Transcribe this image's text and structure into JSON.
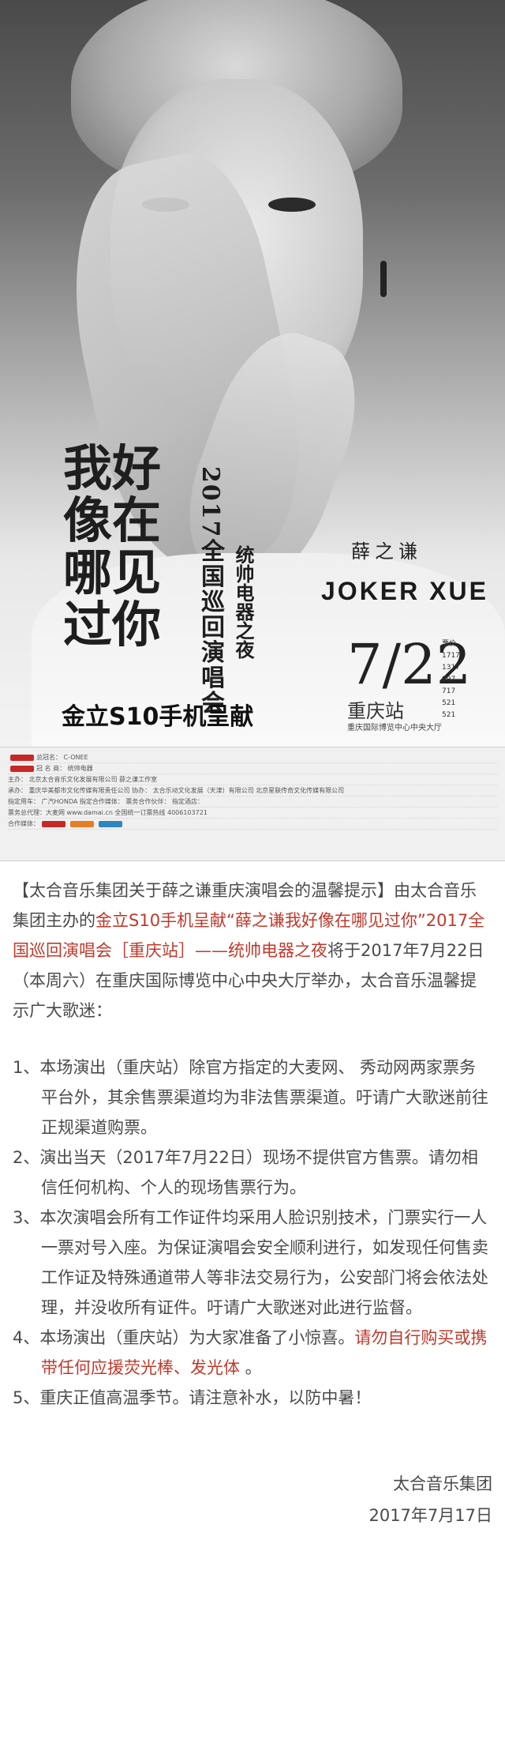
{
  "poster": {
    "tour_title_chars": [
      "我好",
      "像在",
      "哪见",
      "过你"
    ],
    "tour_subtitle": "2017全国巡回演唱会",
    "sponsor_night": "统帅电器之夜",
    "artist_cn": "薛之谦",
    "artist_en": "JOKER XUE",
    "date": "7/22",
    "city": "重庆站",
    "venue": "重庆国际博览中心中央大厅",
    "price_label": "票价",
    "prices": [
      "1717",
      "1317",
      "997",
      "717",
      "521",
      "521"
    ],
    "presenter": "金立S10手机呈献"
  },
  "credits": {
    "rows": [
      "总冠名： C-ONEE",
      "冠 名 商：   统帅电器",
      "主办：  北京太合音乐文化发展有限公司    薛之谦工作室",
      "承办：  重庆华美都市文化传媒有限责任公司    协办：  太合乐动文化发展（天津）有限公司    北京星联传奇文化传媒有限公司",
      "指定用车： 广汽HONDA    指定合作媒体：    票务合作伙伴：    指定酒店：",
      "票务总代理：大麦网    www.damai.cn    全国统一订票热线    4006103721",
      "合作媒体："
    ]
  },
  "article": {
    "intro_parts": [
      "【太合音乐集团关于薛之谦重庆演唱会的温馨提示】由太合音乐集团主办的",
      "金立S10手机呈献“薛之谦我好像在哪见过你”2017全国巡回演唱会［重庆站］——统帅电器之夜",
      "将于2017年7月22日（本周六）在重庆国际博览中心中央大厅举办，太合音乐温馨提示广大歌迷："
    ],
    "items": [
      "1、本场演出（重庆站）除官方指定的大麦网、 秀动网两家票务平台外，其余售票渠道均为非法售票渠道。吁请广大歌迷前往正规渠道购票。",
      "2、演出当天（2017年7月22日）现场不提供官方售票。请勿相信任何机构、个人的现场售票行为。",
      "3、本次演唱会所有工作证件均采用人脸识别技术，门票实行一人一票对号入座。为保证演唱会安全顺利进行，如发现任何售卖工作证及特殊通道带人等非法交易行为，公安部门将会依法处理，并没收所有证件。吁请广大歌迷对此进行监督。"
    ],
    "item4_plain": "4、本场演出（重庆站）为大家准备了小惊喜。",
    "item4_red": "请勿自行购买或携带任何应援荧光棒、发光体",
    "item4_end": " 。",
    "item5": "5、重庆正值高温季节。请注意补水，以防中暑！"
  },
  "signature": {
    "org": "太合音乐集团",
    "date": "2017年7月17日"
  },
  "colors": {
    "highlight": "#c0392b",
    "body_text": "#4a4a4a"
  }
}
